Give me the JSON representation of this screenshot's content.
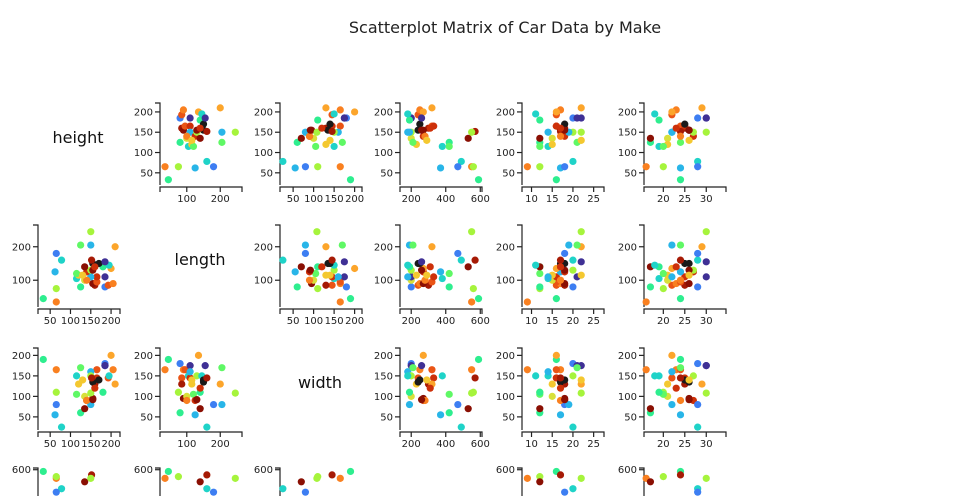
{
  "chart_data": {
    "type": "scatter",
    "subtype": "scatterplot-matrix",
    "title": "Scatterplot Matrix of Car Data by Make",
    "grid": false,
    "legend": "none",
    "variables": [
      {
        "label": "height",
        "range": [
          20,
          222
        ],
        "ticks": [
          50,
          100,
          150,
          200
        ]
      },
      {
        "label": "length",
        "range": [
          20,
          265
        ],
        "ticks": [
          100,
          200
        ],
        "x_ticks": [
          50,
          100,
          150,
          200
        ],
        "x_ticks_cols": [
          0
        ]
      },
      {
        "label": "width",
        "range": [
          18,
          218
        ],
        "ticks": [
          50,
          100,
          150,
          200
        ]
      },
      {
        "label": "",
        "range": [
          135,
          610
        ],
        "ticks": [
          200,
          400,
          600
        ]
      },
      {
        "label": "",
        "range": [
          7.7,
          27.5
        ],
        "ticks": [
          10,
          15,
          20,
          25
        ]
      },
      {
        "label": "",
        "range": [
          15.5,
          34.6
        ],
        "ticks": [
          20,
          25,
          30
        ]
      }
    ],
    "make_colors": [
      "#3f3095",
      "#3d7ef2",
      "#28b5e8",
      "#1fd3c8",
      "#2eee8f",
      "#5ff865",
      "#a6f43c",
      "#d8e03a",
      "#f4c830",
      "#fca52b",
      "#f98020",
      "#ea5415",
      "#cd3009",
      "#a61a05",
      "#8a0f03",
      "#1a1a1a"
    ],
    "points": [
      [
        65,
        35,
        165,
        550,
        9,
        16,
        10
      ],
      [
        33,
        45,
        190,
        590,
        16,
        24,
        4
      ],
      [
        65,
        75,
        110,
        560,
        12,
        20,
        6
      ],
      [
        185,
        80,
        180,
        200,
        20,
        28,
        1
      ],
      [
        125,
        80,
        60,
        420,
        12,
        17,
        4
      ],
      [
        193,
        85,
        145,
        240,
        16,
        22,
        11
      ],
      [
        205,
        90,
        165,
        250,
        17,
        23,
        10
      ],
      [
        160,
        85,
        130,
        300,
        18,
        25,
        13
      ],
      [
        155,
        90,
        95,
        270,
        18,
        26,
        14
      ],
      [
        165,
        95,
        165,
        320,
        16,
        24,
        11
      ],
      [
        135,
        100,
        100,
        200,
        15,
        21,
        7
      ],
      [
        115,
        105,
        150,
        380,
        14,
        19,
        3
      ],
      [
        185,
        110,
        175,
        200,
        21,
        30,
        0
      ],
      [
        165,
        110,
        145,
        330,
        16,
        25,
        12
      ],
      [
        120,
        115,
        130,
        230,
        15,
        21,
        8
      ],
      [
        150,
        110,
        160,
        180,
        14,
        22,
        2
      ],
      [
        115,
        120,
        105,
        420,
        12,
        20,
        5
      ],
      [
        62,
        125,
        55,
        370,
        17,
        24,
        2
      ],
      [
        140,
        125,
        90,
        270,
        18,
        27,
        12
      ],
      [
        150,
        130,
        150,
        200,
        20,
        27,
        6
      ],
      [
        200,
        135,
        200,
        270,
        16,
        22,
        9
      ],
      [
        180,
        140,
        110,
        190,
        12,
        19,
        4
      ],
      [
        135,
        140,
        70,
        530,
        12,
        17,
        14
      ],
      [
        195,
        145,
        150,
        180,
        11,
        18,
        3
      ],
      [
        155,
        150,
        135,
        240,
        17,
        26,
        15
      ],
      [
        170,
        150,
        140,
        250,
        18,
        25,
        15
      ],
      [
        185,
        155,
        175,
        260,
        22,
        30,
        0
      ],
      [
        152,
        160,
        145,
        570,
        17,
        24,
        13
      ],
      [
        78,
        160,
        25,
        490,
        20,
        28,
        3
      ],
      [
        65,
        180,
        80,
        470,
        18,
        28,
        1
      ],
      [
        210,
        200,
        130,
        320,
        22,
        29,
        9
      ],
      [
        150,
        205,
        80,
        190,
        19,
        22,
        2
      ],
      [
        125,
        205,
        170,
        210,
        21,
        24,
        5
      ],
      [
        150,
        245,
        108,
        550,
        22,
        30,
        6
      ],
      [
        140,
        100,
        90,
        280,
        17,
        24,
        10
      ],
      [
        155,
        130,
        92,
        260,
        18,
        26,
        14
      ],
      [
        160,
        140,
        120,
        310,
        17,
        23,
        12
      ],
      [
        130,
        115,
        140,
        290,
        22,
        26,
        8
      ]
    ]
  }
}
